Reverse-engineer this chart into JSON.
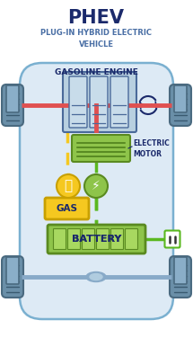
{
  "title": "PHEV",
  "subtitle": "PLUG-IN HYBRID ELECTRIC\nVEHICLE",
  "title_color": "#1b2a6b",
  "subtitle_color": "#4a6fa5",
  "bg_color": "#ffffff",
  "car_body_color": "#ddeaf5",
  "car_border_color": "#7ab0d0",
  "tire_color": "#6a8fa8",
  "tire_dark": "#4a6a80",
  "tire_stripe": "#3a5a70",
  "rim_color": "#8aaec8",
  "rim_inner": "#c8dded",
  "axle_color": "#e05050",
  "axle_rear_color": "#88aac8",
  "engine_color": "#b8d0e0",
  "engine_border": "#4a6a9a",
  "engine_cyl_color": "#c8dcea",
  "motor_color": "#8ec44a",
  "motor_border": "#5a8a20",
  "motor_line": "#4a7a18",
  "gas_circle_color": "#f5c820",
  "gas_circle_border": "#c8a000",
  "elec_circle_color": "#8ec44a",
  "elec_circle_border": "#5a8a20",
  "gas_box_color": "#f5c820",
  "gas_box_border": "#c8a000",
  "battery_color": "#8ec44a",
  "battery_border": "#5a8a20",
  "battery_cell_color": "#a8d860",
  "yellow_wire": "#f5c820",
  "green_wire": "#5ab820",
  "plug_color": "#5ab820",
  "label_color": "#1b2a6b",
  "gasoline_engine_label": "GASOLINE ENGINE",
  "electric_motor_label": "ELECTRIC\nMOTOR",
  "gas_label": "GAS",
  "battery_label": "BATTERY"
}
